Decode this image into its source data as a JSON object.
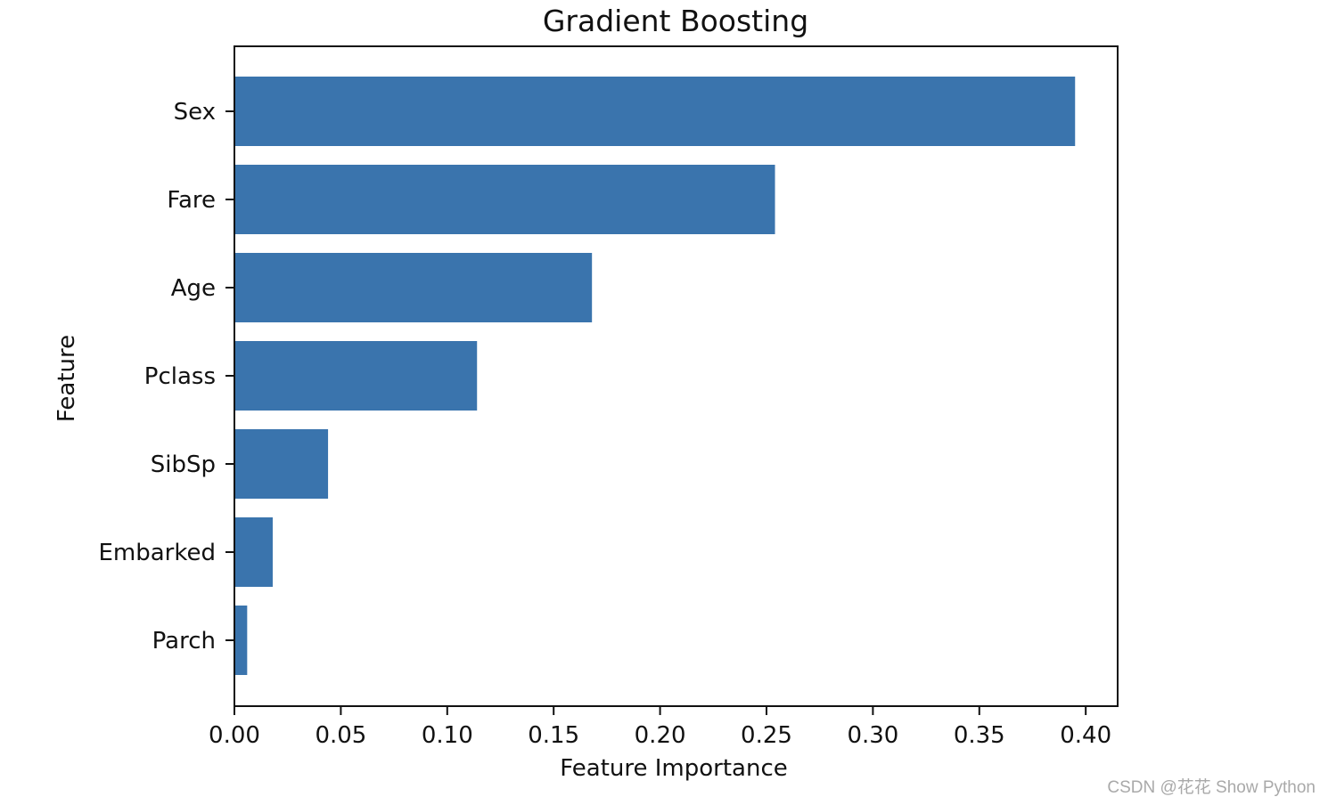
{
  "chart_data": {
    "type": "bar",
    "orientation": "horizontal",
    "title": "Gradient Boosting",
    "xlabel": "Feature Importance",
    "ylabel": "Feature",
    "categories": [
      "Sex",
      "Fare",
      "Age",
      "Pclass",
      "SibSp",
      "Embarked",
      "Parch"
    ],
    "values": [
      0.395,
      0.254,
      0.168,
      0.114,
      0.044,
      0.018,
      0.006
    ],
    "xlim": [
      0,
      0.415
    ],
    "xticks": [
      0.0,
      0.05,
      0.1,
      0.15,
      0.2,
      0.25,
      0.3,
      0.35,
      0.4
    ],
    "xtick_labels": [
      "0.00",
      "0.05",
      "0.10",
      "0.15",
      "0.20",
      "0.25",
      "0.30",
      "0.35",
      "0.40"
    ],
    "grid": false,
    "legend": "none",
    "bar_color": "#3a74ad"
  },
  "watermark": "CSDN @花花 Show Python"
}
